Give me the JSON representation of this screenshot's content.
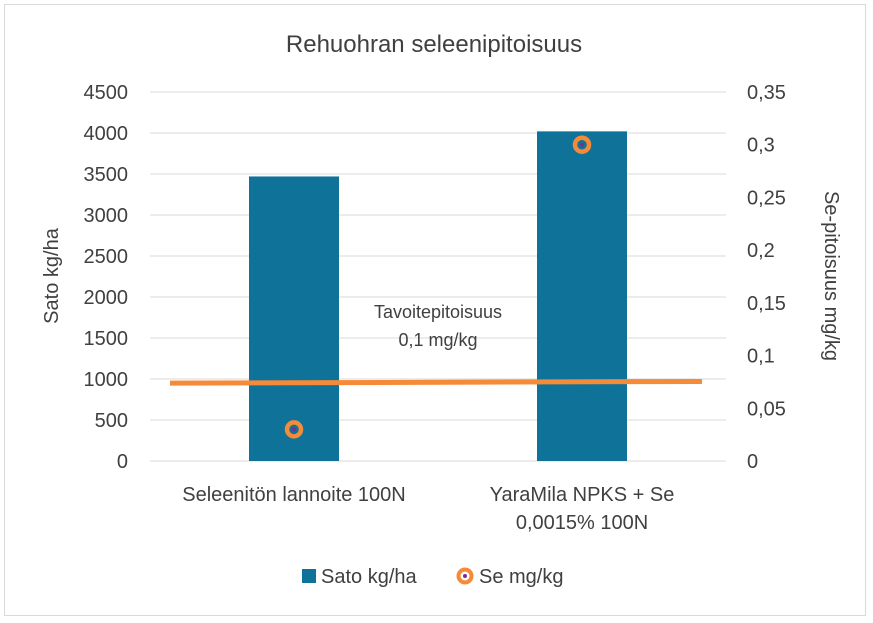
{
  "chart_data": {
    "type": "bar",
    "title": "Rehuohran seleenipitoisuus",
    "categories": [
      "Seleenitön lannoite 100N",
      "YaraMila NPKS + Se 0,0015% 100N"
    ],
    "category_lines": [
      [
        "Seleenitön lannoite 100N"
      ],
      [
        "YaraMila NPKS + Se",
        "0,0015% 100N"
      ]
    ],
    "series": [
      {
        "name": "Sato kg/ha",
        "type": "bar",
        "axis": "left",
        "values": [
          3470,
          4020
        ],
        "color": "#0e7299"
      },
      {
        "name": "Se mg/kg",
        "type": "scatter",
        "axis": "right",
        "values": [
          0.03,
          0.3
        ],
        "color": "#f58a38",
        "inner_color": "#7a2f8f"
      }
    ],
    "target_line": {
      "label_lines": [
        "Tavoitepitoisuus",
        "0,1 mg/kg"
      ],
      "values": [
        950,
        970
      ],
      "color": "#f58a38"
    },
    "ylabel": "Sato kg/ha",
    "y2label": "Se-pitoisuus mg/kg",
    "ylim": [
      0,
      4500
    ],
    "y2lim": [
      0,
      0.35
    ],
    "yticks": [
      "0",
      "500",
      "1000",
      "1500",
      "2000",
      "2500",
      "3000",
      "3500",
      "4000",
      "4500"
    ],
    "y2ticks": [
      "0",
      "0,05",
      "0,1",
      "0,15",
      "0,2",
      "0,25",
      "0,3",
      "0,35"
    ],
    "legend": [
      "Sato kg/ha",
      "Se mg/kg"
    ],
    "legend_position": "bottom",
    "grid": true
  }
}
